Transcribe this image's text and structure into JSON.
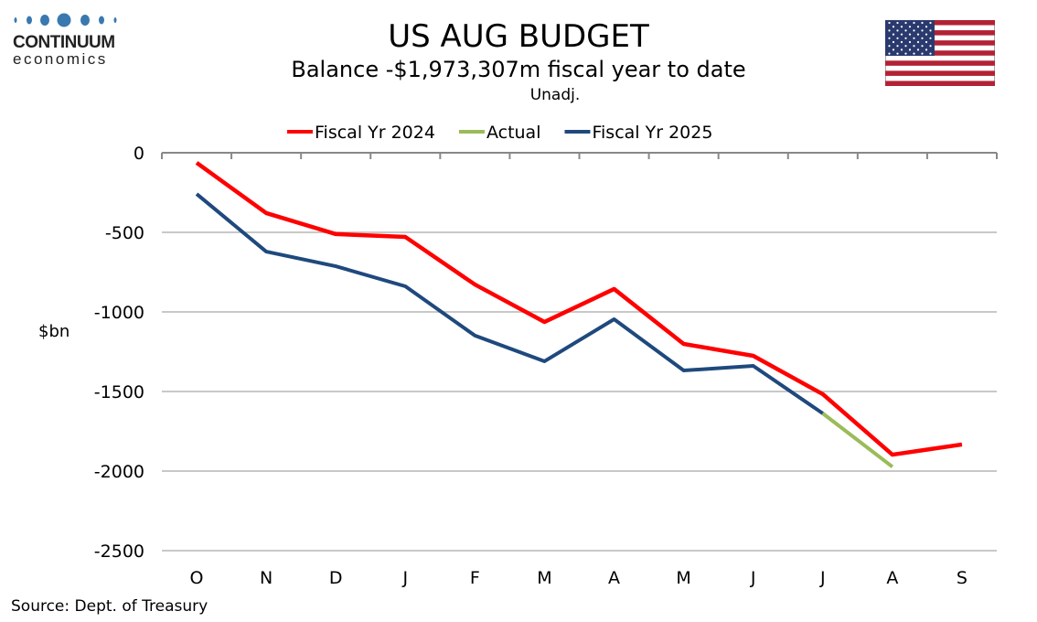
{
  "logo": {
    "name": "CONTINUUM",
    "sub": "economics"
  },
  "title": "US AUG BUDGET",
  "subtitle": "Balance  -$1,973,307m  fiscal year to date",
  "note": "Unadj.",
  "source": "Source: Dept. of Treasury",
  "chart_data": {
    "type": "line",
    "title": "US AUG BUDGET",
    "ylabel": "$bn",
    "xlabel": "",
    "categories": [
      "O",
      "N",
      "D",
      "J",
      "F",
      "M",
      "A",
      "M",
      "J",
      "J",
      "A",
      "S"
    ],
    "ylim": [
      -2500,
      0
    ],
    "yticks": [
      0,
      -500,
      -1000,
      -1500,
      -2000,
      -2500
    ],
    "legend_position": "top",
    "grid": true,
    "series": [
      {
        "name": "Fiscal Yr 2024",
        "color": "#ff0000",
        "values": [
          -63,
          -379,
          -511,
          -529,
          -828,
          -1063,
          -856,
          -1201,
          -1276,
          -1517,
          -1897,
          -1833
        ]
      },
      {
        "name": "Actual",
        "color": "#9bbb59",
        "values": [
          null,
          null,
          null,
          null,
          null,
          null,
          null,
          null,
          null,
          -1638,
          -1973,
          null
        ]
      },
      {
        "name": "Fiscal Yr 2025",
        "color": "#1f497d",
        "values": [
          -259,
          -621,
          -713,
          -839,
          -1149,
          -1310,
          -1046,
          -1368,
          -1339,
          -1638,
          null,
          null
        ]
      }
    ]
  }
}
